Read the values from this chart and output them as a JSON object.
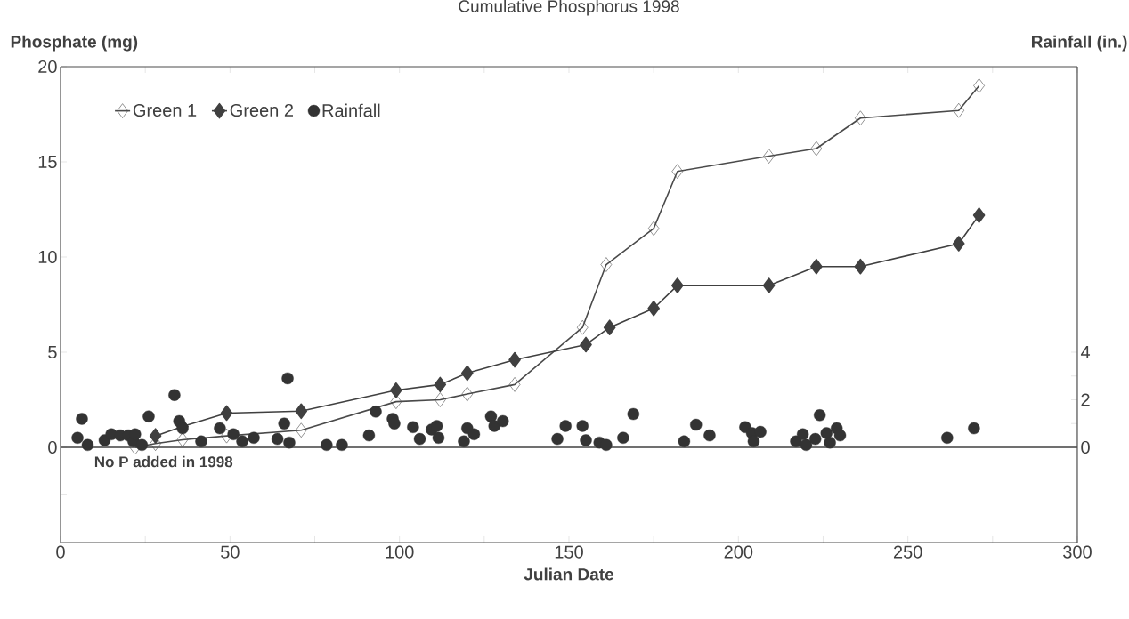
{
  "chart_data": {
    "type": "line",
    "title": "Cumulative Phosphorus 1998",
    "xlabel": "Julian Date",
    "ylabel": "Phosphate (mg)",
    "y2label": "Rainfall (in.)",
    "annotations": [
      "No P added in 1998"
    ],
    "xlim": [
      0,
      300
    ],
    "ylim": [
      -5,
      20
    ],
    "y2lim": [
      -4,
      16
    ],
    "xticks": [
      0,
      {
        "value": 25,
        "label": null
      },
      50,
      {
        "value": 75,
        "label": null
      },
      100,
      {
        "value": 125,
        "label": null
      },
      150,
      {
        "value": 175,
        "label": null
      },
      200,
      {
        "value": 225,
        "label": null
      },
      250,
      {
        "value": 275,
        "label": null
      },
      300
    ],
    "yticks": [
      {
        "value": -2.5,
        "label": null
      },
      0,
      5,
      10,
      15,
      20
    ],
    "y2ticks": [
      0,
      {
        "value": 1,
        "label": null
      },
      2,
      {
        "value": 3,
        "label": null
      },
      4
    ],
    "ref_lines": [
      {
        "axis": "y",
        "value": 0,
        "color": "#404040"
      }
    ],
    "legend": "top left",
    "grid": false,
    "marker": "diamond",
    "line_style": "solid",
    "series": [
      {
        "name": "Green 1",
        "color": "#4a4a4a",
        "x": [
          22,
          28,
          36,
          49,
          71,
          99,
          112,
          120,
          134,
          154,
          161,
          175,
          182,
          209,
          223,
          236,
          265,
          271
        ],
        "values": [
          0,
          0.2,
          0.4,
          0.6,
          0.9,
          2.4,
          2.5,
          2.8,
          3.3,
          6.3,
          9.6,
          11.5,
          14.5,
          15.3,
          15.7,
          17.3,
          17.7,
          19.0
        ]
      },
      {
        "name": "Green 2",
        "color": "#404040",
        "marker": "diamond",
        "x": [
          28,
          36,
          49,
          71,
          99,
          112,
          120,
          134,
          155,
          162,
          175,
          182,
          209,
          223,
          236,
          265,
          271
        ],
        "values": [
          0.6,
          1.1,
          1.8,
          1.9,
          3.0,
          3.3,
          3.9,
          4.6,
          5.4,
          6.3,
          7.3,
          8.5,
          8.5,
          9.5,
          9.5,
          10.7,
          12.2
        ]
      },
      {
        "name": "Rainfall",
        "type": "scatter",
        "marker": "circle",
        "axis": "y2",
        "color": "#333333",
        "x": [
          5,
          6.3,
          8,
          13,
          15,
          17.6,
          20,
          21.5,
          22,
          24,
          26,
          33.6,
          35,
          36,
          41.5,
          47,
          51,
          53.6,
          57,
          64,
          66,
          67,
          67.5,
          78.5,
          83,
          91,
          93,
          98,
          98.5,
          104,
          106,
          109.5,
          111,
          111.5,
          119,
          120,
          122,
          127,
          128,
          130.5,
          146.6,
          149,
          154,
          155,
          159,
          161,
          166,
          169,
          184,
          187.5,
          191.5,
          202,
          204,
          204.5,
          206.5,
          217,
          219,
          220,
          222.7,
          224,
          226,
          227,
          229,
          230,
          261.6,
          269.5
        ],
        "values": [
          0.4,
          1.2,
          0.1,
          0.3,
          0.55,
          0.5,
          0.5,
          0.25,
          0.55,
          0.1,
          1.3,
          2.2,
          1.1,
          0.8,
          0.25,
          0.8,
          0.55,
          0.25,
          0.4,
          0.35,
          1.0,
          2.9,
          0.2,
          0.1,
          0.1,
          0.5,
          1.5,
          1.2,
          1.0,
          0.85,
          0.35,
          0.75,
          0.9,
          0.4,
          0.25,
          0.8,
          0.55,
          1.3,
          0.9,
          1.1,
          0.35,
          0.9,
          0.9,
          0.3,
          0.2,
          0.1,
          0.4,
          1.4,
          0.25,
          0.95,
          0.5,
          0.85,
          0.6,
          0.25,
          0.65,
          0.25,
          0.55,
          0.1,
          0.35,
          1.35,
          0.6,
          0.2,
          0.8,
          0.5,
          0.4,
          0.8
        ]
      }
    ]
  }
}
